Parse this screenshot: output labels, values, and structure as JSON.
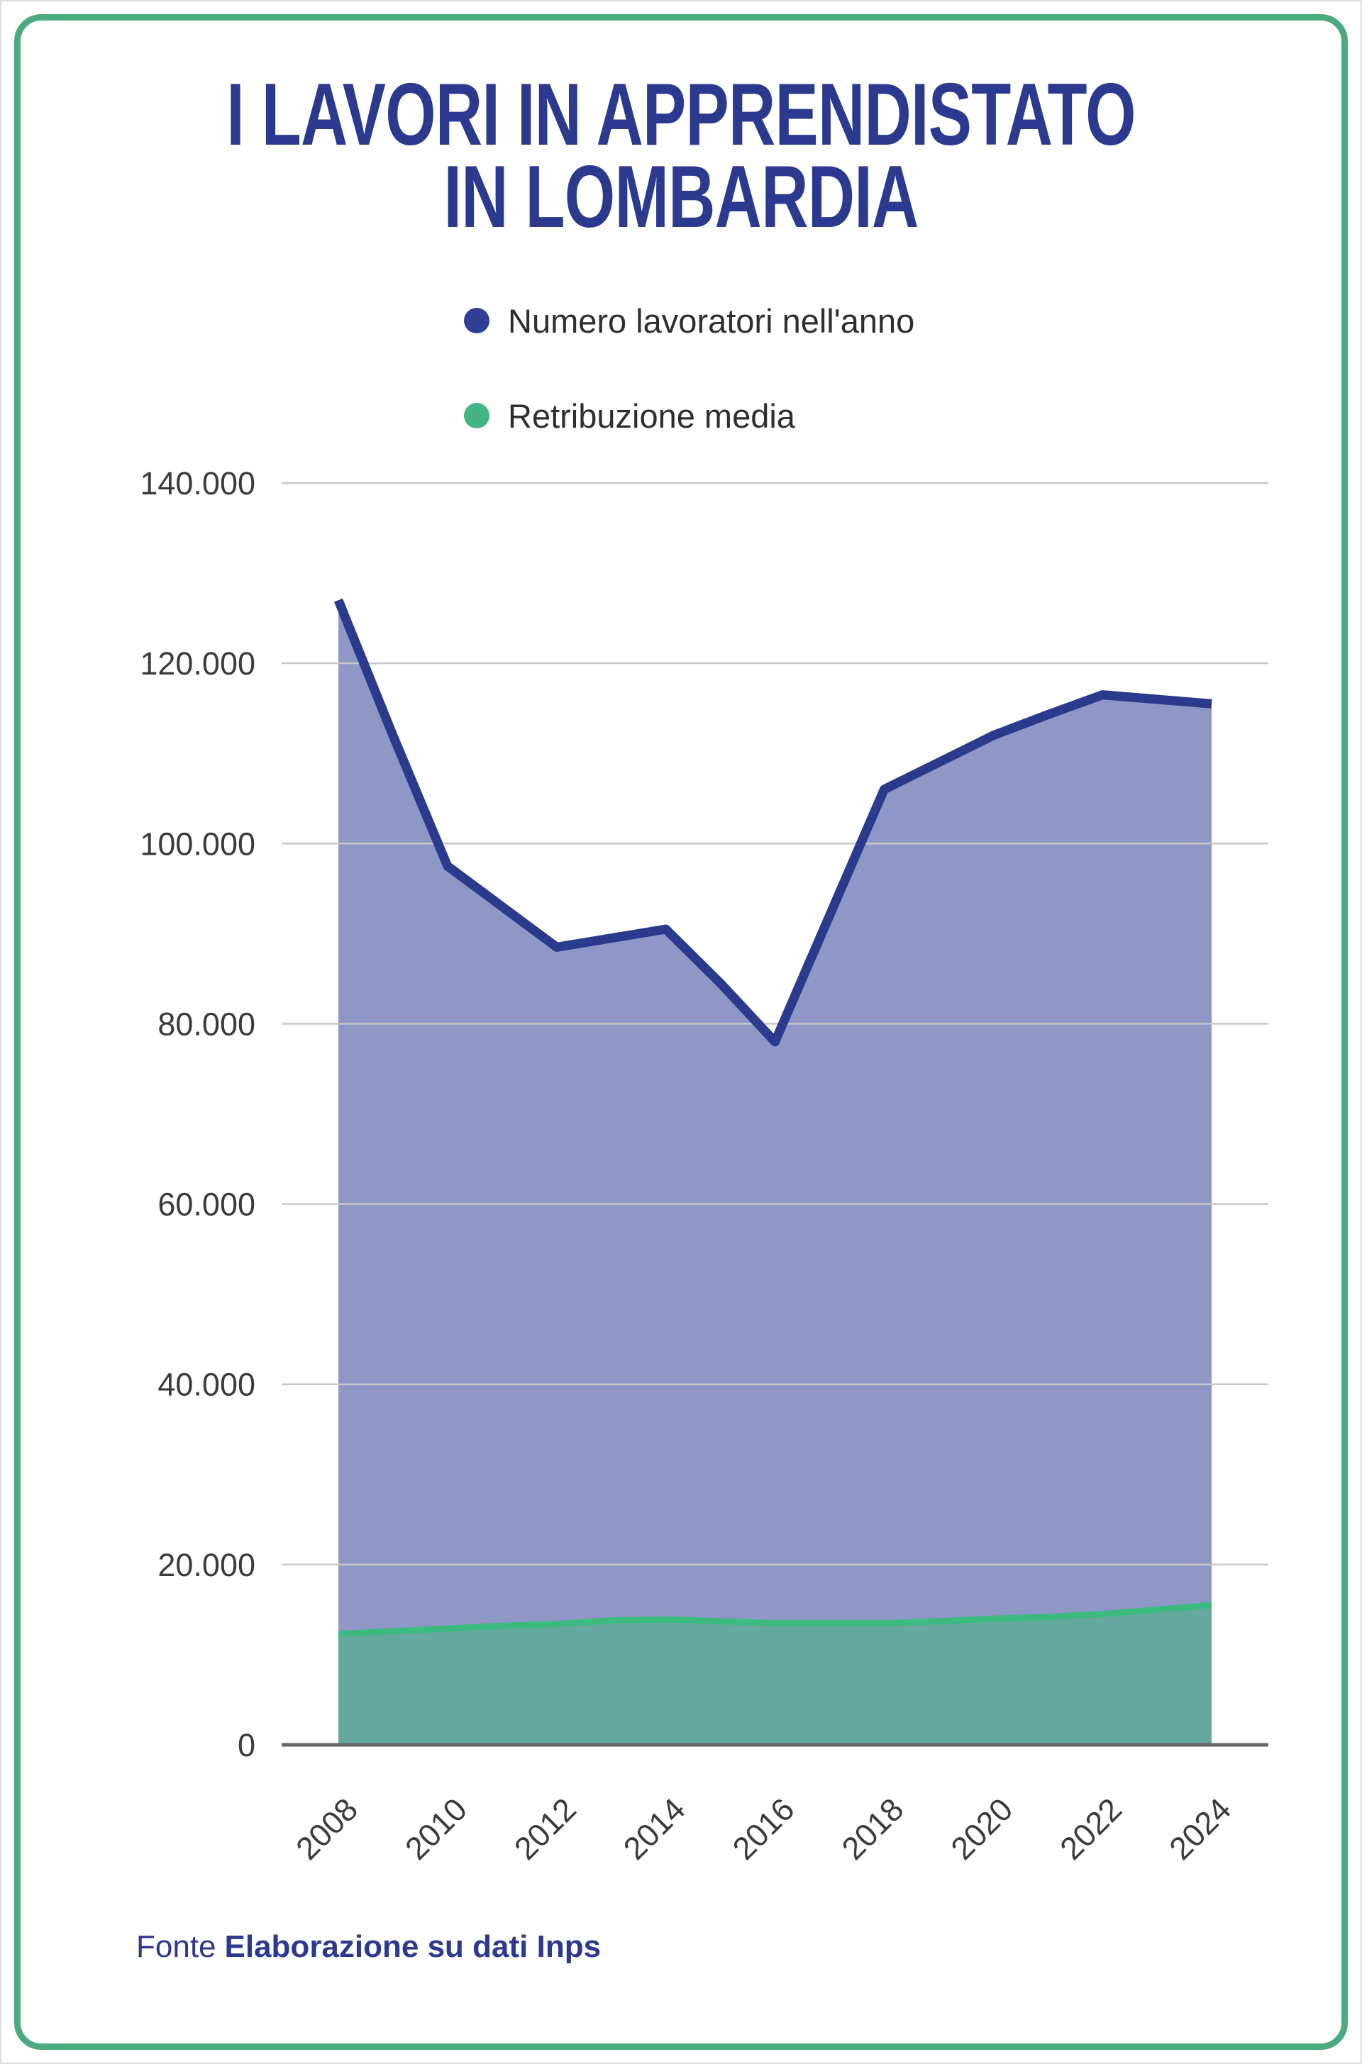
{
  "card": {
    "title_line1": "I LAVORI IN APPRENDISTATO",
    "title_line2": "IN LOMBARDIA",
    "title_color": "#2b3a8f",
    "border_color": "#4aab7e"
  },
  "legend": {
    "items": [
      {
        "label": "Numero lavoratori nell'anno",
        "color": "#2e4096"
      },
      {
        "label": "Retribuzione media",
        "color": "#45b683"
      }
    ]
  },
  "chart_data": {
    "type": "area",
    "title": "I lavori in apprendistato in Lombardia",
    "x": [
      2008,
      2009,
      2010,
      2011,
      2012,
      2013,
      2014,
      2015,
      2016,
      2017,
      2018,
      2019,
      2020,
      2021,
      2022,
      2023,
      2024
    ],
    "series": [
      {
        "id": "workers",
        "name": "Numero lavoratori nell'anno",
        "values": [
          127000,
          112000,
          97500,
          93000,
          88500,
          89500,
          90500,
          84500,
          78000,
          92000,
          106000,
          109000,
          112000,
          114300,
          116500,
          116000,
          115500
        ],
        "fill": "#8e97c5",
        "stroke": "#2a3a8c"
      },
      {
        "id": "salary",
        "name": "Retribuzione media",
        "values": [
          12300,
          12600,
          12900,
          13200,
          13400,
          13800,
          13900,
          13700,
          13500,
          13500,
          13500,
          13700,
          14000,
          14200,
          14500,
          15000,
          15500
        ],
        "fill": "#65a89d",
        "stroke": "#3dba80"
      }
    ],
    "ylim": [
      0,
      140000
    ],
    "ytick_values": [
      0,
      20000,
      40000,
      60000,
      80000,
      100000,
      120000,
      140000
    ],
    "ytick_labels": [
      "0",
      "20.000",
      "40.000",
      "60.000",
      "80.000",
      "100.000",
      "120.000",
      "140.000"
    ],
    "xtick_values": [
      2008,
      2010,
      2012,
      2014,
      2016,
      2018,
      2020,
      2022,
      2024
    ],
    "xtick_labels": [
      "2008",
      "2010",
      "2012",
      "2014",
      "2016",
      "2018",
      "2020",
      "2022",
      "2024"
    ],
    "grid": true,
    "grid_color": "#c7c7c7",
    "axis_color": "#666666",
    "legend_position": "top"
  },
  "footer": {
    "prefix": "Fonte",
    "source": "Elaborazione su dati Inps",
    "color": "#2b3a8f"
  }
}
